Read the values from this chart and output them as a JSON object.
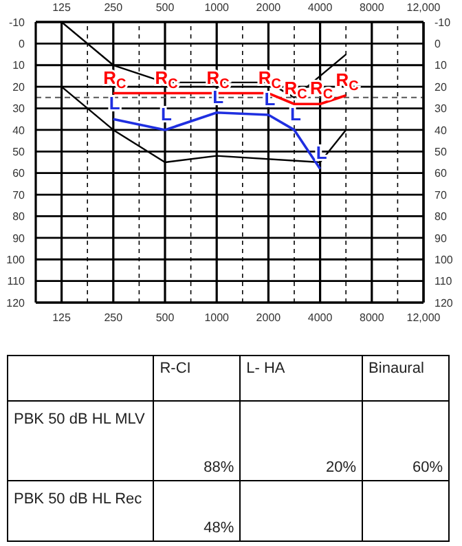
{
  "chart_data": [
    {
      "type": "line",
      "categories": [
        "125",
        null,
        "250",
        null,
        "500",
        null,
        "1000",
        null,
        "2000",
        null,
        "4000",
        null,
        "8000",
        null,
        "12,000"
      ],
      "ylim": [
        120,
        -10
      ],
      "yticks": [
        -10,
        0,
        10,
        20,
        30,
        40,
        50,
        60,
        70,
        80,
        90,
        100,
        110,
        120
      ],
      "y2lim": [
        120,
        -10
      ],
      "y2ticks": [
        -10,
        0,
        10,
        20,
        30,
        40,
        50,
        60,
        70,
        80,
        90,
        100,
        110,
        120
      ],
      "grid": true,
      "ref_lines": [
        {
          "axis": "y",
          "value": 25,
          "line_style": "dashed",
          "color": "#555555"
        }
      ],
      "series": [
        {
          "color": "#000000",
          "values": [
            -10,
            null,
            10,
            null,
            18,
            null,
            null,
            null,
            18,
            25,
            null,
            5,
            null,
            null,
            null
          ]
        },
        {
          "color": "#000000",
          "values": [
            20,
            null,
            40,
            null,
            55,
            null,
            52,
            null,
            null,
            null,
            55,
            40,
            null,
            null,
            null
          ]
        },
        {
          "color": "#000000",
          "values": [
            null,
            null,
            0,
            null,
            0,
            null,
            null,
            null,
            null,
            null,
            null,
            null,
            null,
            null,
            null
          ]
        },
        {
          "name": "R$_{C}$",
          "color": "#ff0000",
          "values": [
            null,
            null,
            23,
            null,
            23,
            null,
            23,
            null,
            23,
            28,
            28,
            24,
            null,
            null,
            null
          ]
        },
        {
          "name": "L",
          "color": "#1f2fe0",
          "values": [
            null,
            null,
            35,
            null,
            40,
            null,
            32,
            null,
            33,
            40,
            58,
            null,
            null,
            null,
            null
          ]
        }
      ]
    },
    {
      "type": "other",
      "categories": [
        "R-CI",
        "L- HA",
        "Binaural"
      ],
      "y_categories": [
        "PBK 50 dB HL MLV",
        "PBK 50 dB HL Rec"
      ],
      "cell_labels": [
        [
          "88%",
          "20%",
          "60%"
        ],
        [
          "48%",
          null,
          null
        ]
      ]
    }
  ]
}
